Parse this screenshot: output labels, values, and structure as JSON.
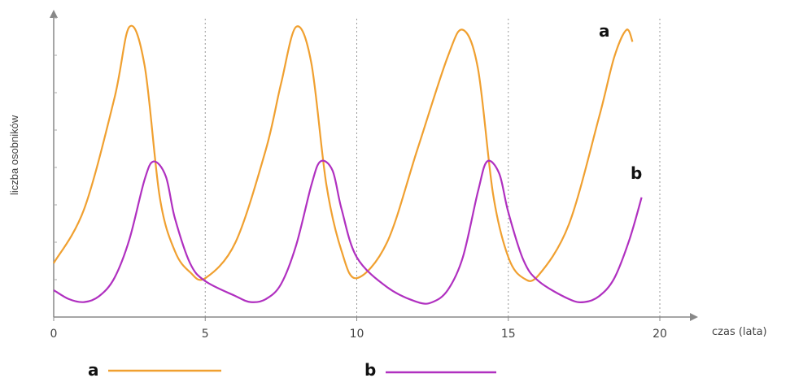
{
  "chart_data": {
    "type": "line",
    "title": "",
    "xlabel": "czas (lata)",
    "ylabel": "liczba osobników",
    "xlim": [
      0,
      20
    ],
    "ylim": [
      0,
      10
    ],
    "x_ticks": [
      "0",
      "5",
      "10",
      "15",
      "20"
    ],
    "grid": "vertical dotted at 5, 10, 15, 20",
    "legend_placement": "bottom",
    "series": [
      {
        "name": "a",
        "color": "#f0a030",
        "x": [
          0,
          1,
          2,
          2.5,
          3,
          3.5,
          4,
          4.5,
          5,
          6,
          7,
          7.5,
          8,
          8.5,
          9,
          9.5,
          10,
          11,
          12,
          13,
          13.5,
          14,
          14.5,
          15,
          15.5,
          16,
          17,
          18,
          18.5,
          18.9,
          19.1
        ],
        "y": [
          1.8,
          3.6,
          7.3,
          9.7,
          8.4,
          4.0,
          2.2,
          1.5,
          1.3,
          2.5,
          5.6,
          7.8,
          9.7,
          8.5,
          4.4,
          2.2,
          1.3,
          2.5,
          5.6,
          8.7,
          9.6,
          8.3,
          4.1,
          2.0,
          1.3,
          1.4,
          3.1,
          6.7,
          8.7,
          9.6,
          9.2
        ]
      },
      {
        "name": "b",
        "color": "#b030c0",
        "x": [
          0,
          0.5,
          1,
          1.5,
          2,
          2.5,
          3,
          3.3,
          3.7,
          4,
          4.5,
          5,
          6,
          6.5,
          7,
          7.5,
          8,
          8.5,
          8.8,
          9.2,
          9.5,
          10,
          11,
          12,
          12.5,
          13,
          13.5,
          14,
          14.3,
          14.7,
          15,
          15.5,
          16,
          17,
          17.5,
          18,
          18.5,
          19,
          19.4
        ],
        "y": [
          0.9,
          0.6,
          0.5,
          0.7,
          1.3,
          2.6,
          4.6,
          5.2,
          4.7,
          3.3,
          1.8,
          1.2,
          0.7,
          0.5,
          0.6,
          1.1,
          2.4,
          4.4,
          5.2,
          4.9,
          3.6,
          2.0,
          1.0,
          0.5,
          0.5,
          0.9,
          2.0,
          4.2,
          5.2,
          4.8,
          3.5,
          1.9,
          1.2,
          0.6,
          0.5,
          0.7,
          1.3,
          2.6,
          4.0
        ]
      }
    ],
    "legend": [
      {
        "label": "a",
        "color": "#f0a030"
      },
      {
        "label": "b",
        "color": "#b030c0"
      }
    ]
  }
}
